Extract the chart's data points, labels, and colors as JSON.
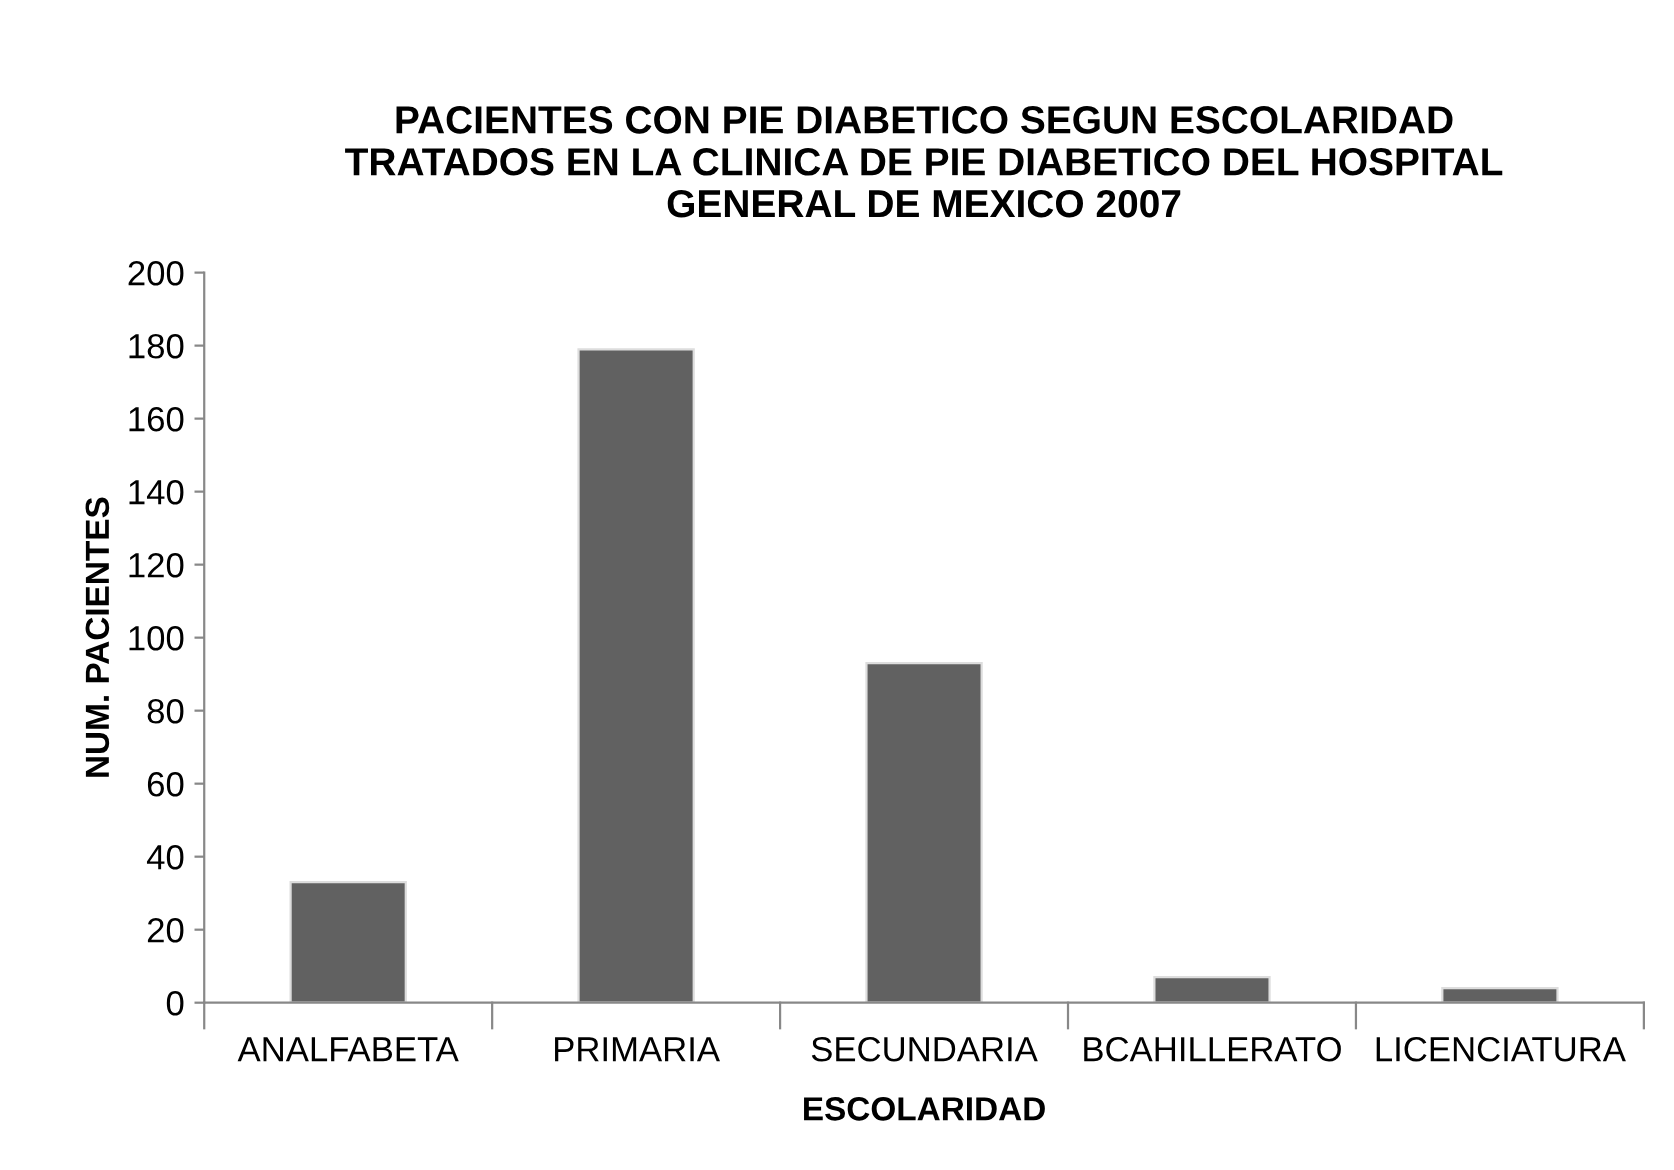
{
  "chart_data": {
    "type": "bar",
    "title": "PACIENTES CON PIE DIABETICO SEGUN ESCOLARIDAD\nTRATADOS EN LA CLINICA DE PIE DIABETICO DEL HOSPITAL\nGENERAL DE MEXICO 2007",
    "xlabel": "ESCOLARIDAD",
    "ylabel": "NUM. PACIENTES",
    "categories": [
      "ANALFABETA",
      "PRIMARIA",
      "SECUNDARIA",
      "BCAHILLERATO",
      "LICENCIATURA"
    ],
    "values": [
      33,
      179,
      93,
      7,
      4
    ],
    "color": "#616161",
    "ylim": [
      0,
      200
    ],
    "yticks": [
      0,
      20,
      40,
      60,
      80,
      100,
      120,
      140,
      160,
      180,
      200
    ],
    "grid": false,
    "legend": false
  }
}
